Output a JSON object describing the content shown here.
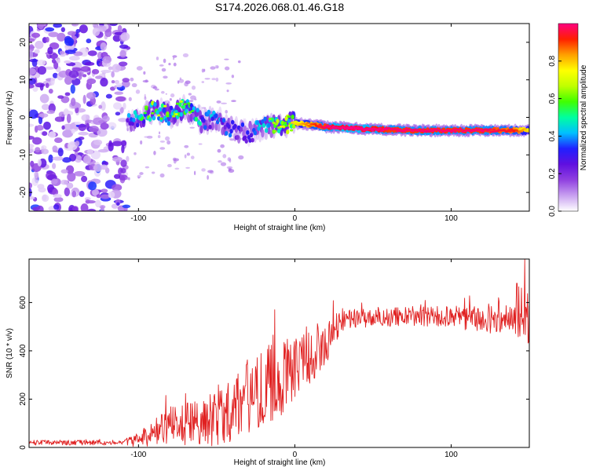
{
  "title": "S174.2026.068.01.46.G18",
  "colorbar_label": "Normalized spectral amplitude",
  "chart_data": [
    {
      "type": "heatmap",
      "xlabel": "Height of straight line (km)",
      "ylabel": "Frequency (Hz)",
      "xlim": [
        -170,
        150
      ],
      "ylim": [
        -25,
        25
      ],
      "xticks": [
        {
          "v": -100,
          "label": "-100"
        },
        {
          "v": 0,
          "label": "0"
        },
        {
          "v": 100,
          "label": "100"
        }
      ],
      "yticks": [
        {
          "v": -20,
          "label": "-20"
        },
        {
          "v": -10,
          "label": "-10"
        },
        {
          "v": 0,
          "label": "0"
        },
        {
          "v": 10,
          "label": "10"
        },
        {
          "v": 20,
          "label": "20"
        }
      ],
      "noise_region": [
        -170,
        -107
      ],
      "ridge": {
        "x": [
          -107,
          -100,
          -90,
          -80,
          -70,
          -60,
          -50,
          -40,
          -30,
          -20,
          -10,
          0,
          10,
          20,
          30,
          40,
          60,
          80,
          100,
          120,
          140,
          150
        ],
        "freq": [
          -1.5,
          0,
          2,
          0.5,
          2.5,
          -1,
          -0.5,
          -3,
          -4.5,
          -2.5,
          -2,
          -1.5,
          -2,
          -2.5,
          -2.7,
          -3,
          -3.3,
          -3.5,
          -3.5,
          -3.5,
          -3.5,
          -3.5
        ],
        "amplitude": [
          0.35,
          0.45,
          0.6,
          0.55,
          0.62,
          0.45,
          0.4,
          0.35,
          0.3,
          0.45,
          0.6,
          0.7,
          0.8,
          0.9,
          0.95,
          0.95,
          0.9,
          0.9,
          0.9,
          0.9,
          0.85,
          0.7
        ]
      },
      "colorbar": {
        "range": [
          0,
          1
        ],
        "ticks": [
          {
            "v": 0.0,
            "label": "0.0"
          },
          {
            "v": 0.2,
            "label": "0.2"
          },
          {
            "v": 0.4,
            "label": "0.4"
          },
          {
            "v": 0.6,
            "label": "0.6"
          },
          {
            "v": 0.8,
            "label": "0.8"
          }
        ],
        "colors": [
          "#ffffff",
          "#c8a0f0",
          "#9040e0",
          "#6010e0",
          "#2020ff",
          "#00c0ff",
          "#00ffa0",
          "#40ff00",
          "#c0ff00",
          "#ffff00",
          "#ffa000",
          "#ff2000",
          "#ff0080"
        ]
      }
    },
    {
      "type": "line",
      "xlabel": "Height of straight line (km)",
      "ylabel": "SNR (10 * v/v)",
      "xlim": [
        -170,
        150
      ],
      "ylim": [
        0,
        780
      ],
      "xticks": [
        {
          "v": -100,
          "label": "-100"
        },
        {
          "v": 0,
          "label": "0"
        },
        {
          "v": 100,
          "label": "100"
        }
      ],
      "yticks": [
        {
          "v": 0,
          "label": "0"
        },
        {
          "v": 200,
          "label": "200"
        },
        {
          "v": 400,
          "label": "400"
        },
        {
          "v": 600,
          "label": "600"
        }
      ],
      "color": "#e02020",
      "trend": {
        "x": [
          -170,
          -110,
          -100,
          -90,
          -80,
          -70,
          -60,
          -50,
          -40,
          -30,
          -20,
          -10,
          0,
          10,
          20,
          30,
          50,
          80,
          100,
          120,
          140,
          150
        ],
        "y": [
          20,
          20,
          30,
          60,
          90,
          100,
          110,
          130,
          170,
          210,
          250,
          280,
          340,
          390,
          420,
          530,
          540,
          540,
          540,
          530,
          530,
          520
        ]
      },
      "spread": {
        "x": [
          -170,
          -110,
          -100,
          -80,
          -60,
          -40,
          -20,
          0,
          20,
          30,
          60,
          100,
          140,
          150
        ],
        "y": [
          8,
          8,
          25,
          60,
          80,
          110,
          130,
          110,
          80,
          35,
          30,
          35,
          50,
          70
        ]
      },
      "peaks": [
        {
          "x": -13,
          "y": 570
        },
        {
          "x": 147,
          "y": 780
        },
        {
          "x": 142,
          "y": 680
        },
        {
          "x": 145,
          "y": 660
        }
      ]
    }
  ]
}
